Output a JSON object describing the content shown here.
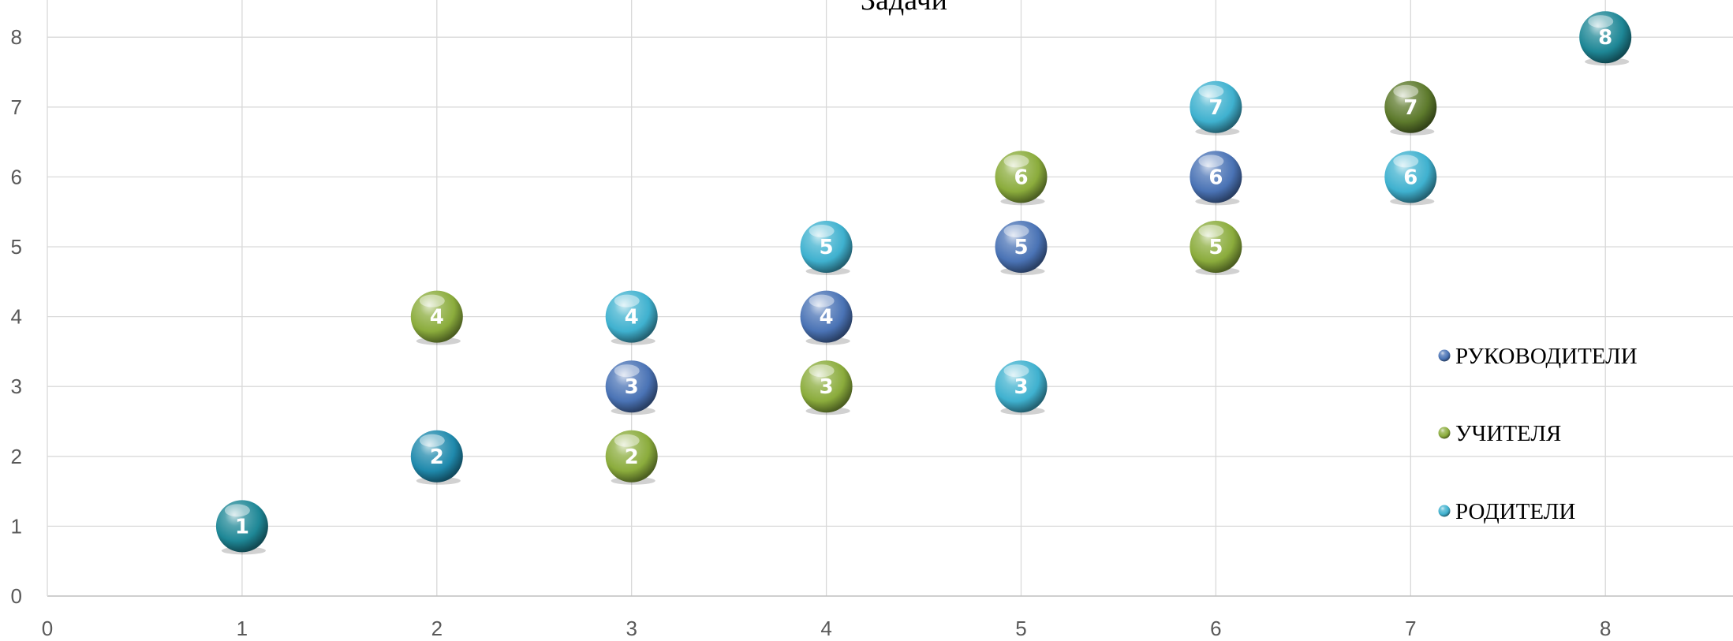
{
  "chart_data": {
    "type": "scatter",
    "title": "Задачи",
    "xlim": [
      0,
      8.8
    ],
    "ylim": [
      0,
      8
    ],
    "x_ticks": [
      "0",
      "1",
      "2",
      "3",
      "4",
      "5",
      "6",
      "7",
      "8"
    ],
    "y_ticks": [
      "0",
      "1",
      "2",
      "3",
      "4",
      "5",
      "6",
      "7",
      "8"
    ],
    "grid": true,
    "legend_position": "right",
    "series": [
      {
        "name": "РУКОВОДИТЕЛИ",
        "color": "#4a73b5",
        "points": [
          {
            "x": 3,
            "y": 3,
            "label": "3"
          },
          {
            "x": 4,
            "y": 4,
            "label": "4"
          },
          {
            "x": 5,
            "y": 5,
            "label": "5"
          },
          {
            "x": 6,
            "y": 6,
            "label": "6"
          }
        ]
      },
      {
        "name": "УЧИТЕЛЯ",
        "color": "#8bac3c",
        "points": [
          {
            "x": 3,
            "y": 2,
            "label": "2"
          },
          {
            "x": 4,
            "y": 3,
            "label": "3"
          },
          {
            "x": 2,
            "y": 4,
            "label": "4"
          },
          {
            "x": 6,
            "y": 5,
            "label": "5"
          },
          {
            "x": 5,
            "y": 6,
            "label": "6"
          },
          {
            "x": 7,
            "y": 7,
            "label": "7",
            "color": "#5d7a2c"
          }
        ]
      },
      {
        "name": "РОДИТЕЛИ",
        "color": "#3fb1cf",
        "points": [
          {
            "x": 1,
            "y": 1,
            "label": "1",
            "color": "#1e8796"
          },
          {
            "x": 2,
            "y": 2,
            "label": "2",
            "color": "#1f89ac"
          },
          {
            "x": 5,
            "y": 3,
            "label": "3"
          },
          {
            "x": 3,
            "y": 4,
            "label": "4"
          },
          {
            "x": 4,
            "y": 5,
            "label": "5"
          },
          {
            "x": 7,
            "y": 6,
            "label": "6"
          },
          {
            "x": 6,
            "y": 7,
            "label": "7"
          },
          {
            "x": 8,
            "y": 8,
            "label": "8",
            "color": "#1e8796"
          }
        ]
      }
    ]
  }
}
